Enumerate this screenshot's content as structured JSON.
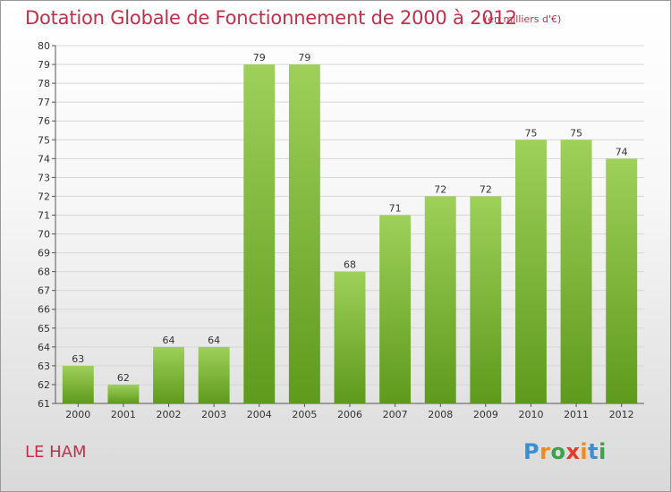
{
  "title": "Dotation Globale de Fonctionnement de 2000 à 2012",
  "subtitle": "(en milliers d'€)",
  "commune": "LE HAM",
  "logo": {
    "letters": [
      "P",
      "r",
      "o",
      "x",
      "i",
      "t",
      "i"
    ],
    "colors": [
      "#3a8fd0",
      "#f08a1e",
      "#3aa34a",
      "#e23b2c",
      "#f08a1e",
      "#3a8fd0",
      "#3aa34a"
    ]
  },
  "colors": {
    "title": "#c0304a",
    "bar_top": "#9ed05a",
    "bar_bottom": "#5e9a1c",
    "grid": "#d6d6d6"
  },
  "chart_data": {
    "type": "bar",
    "title": "Dotation Globale de Fonctionnement de 2000 à 2012",
    "subtitle": "(en milliers d'€)",
    "categories": [
      "2000",
      "2001",
      "2002",
      "2003",
      "2004",
      "2005",
      "2006",
      "2007",
      "2008",
      "2009",
      "2010",
      "2011",
      "2012"
    ],
    "values": [
      63,
      62,
      64,
      64,
      79,
      79,
      68,
      71,
      72,
      72,
      75,
      75,
      74
    ],
    "ylim": [
      61,
      80
    ],
    "yticks": [
      61,
      62,
      63,
      64,
      65,
      66,
      67,
      68,
      69,
      70,
      71,
      72,
      73,
      74,
      75,
      76,
      77,
      78,
      79,
      80
    ],
    "grid": true,
    "legend": "none",
    "xlabel": "",
    "ylabel": ""
  }
}
